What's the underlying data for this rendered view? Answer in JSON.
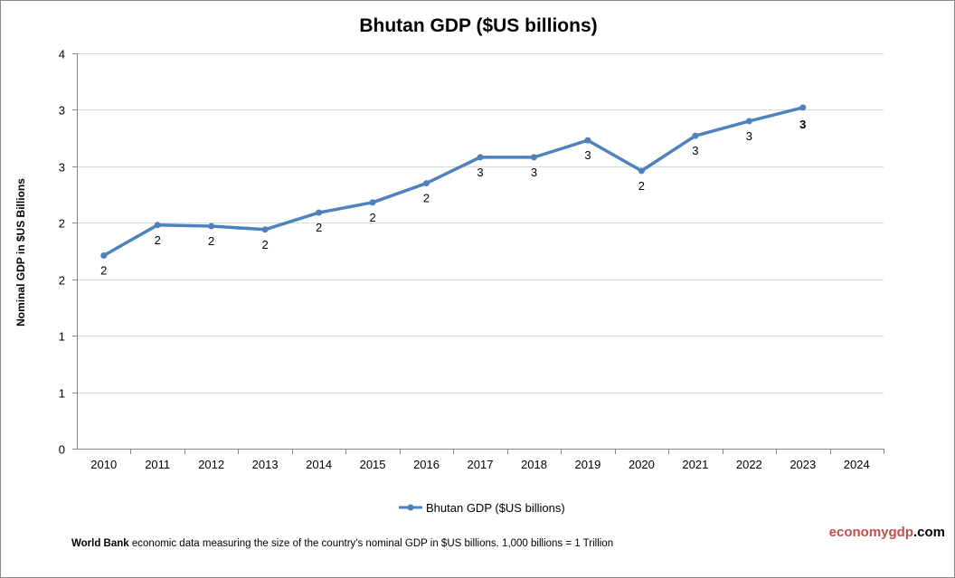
{
  "chart_data": {
    "type": "line",
    "title": "Bhutan GDP ($US billions)",
    "ylabel": "Nominal GDP in $US Billions",
    "xlabel": "",
    "categories": [
      "2010",
      "2011",
      "2012",
      "2013",
      "2014",
      "2015",
      "2016",
      "2017",
      "2018",
      "2019",
      "2020",
      "2021",
      "2022",
      "2023",
      "2024"
    ],
    "series": [
      {
        "name": "Bhutan GDP ($US billions)",
        "values": [
          1.71,
          1.98,
          1.97,
          1.94,
          2.09,
          2.18,
          2.35,
          2.58,
          2.58,
          2.73,
          2.46,
          2.77,
          2.9,
          3.02,
          null
        ],
        "labels": [
          "2",
          "2",
          "2",
          "2",
          "2",
          "2",
          "2",
          "3",
          "3",
          "3",
          "2",
          "3",
          "3",
          "3",
          ""
        ]
      }
    ],
    "ylim": [
      0,
      3.5
    ],
    "yticks": [
      0,
      0.5,
      1,
      1.5,
      2,
      2.5,
      3,
      3.5
    ],
    "ytick_labels": [
      "0",
      "1",
      "1",
      "2",
      "2",
      "3",
      "3",
      "4"
    ],
    "grid": true,
    "legend": "bottom",
    "color": "#4f81bd"
  },
  "footer": {
    "source_bold": "World Bank",
    "text": " economic data  measuring the size of the country's nominal GDP in $US billions. 1,000 billions = 1 Trillion"
  },
  "brand": {
    "part1": "economygdp",
    "part2": ".com"
  }
}
